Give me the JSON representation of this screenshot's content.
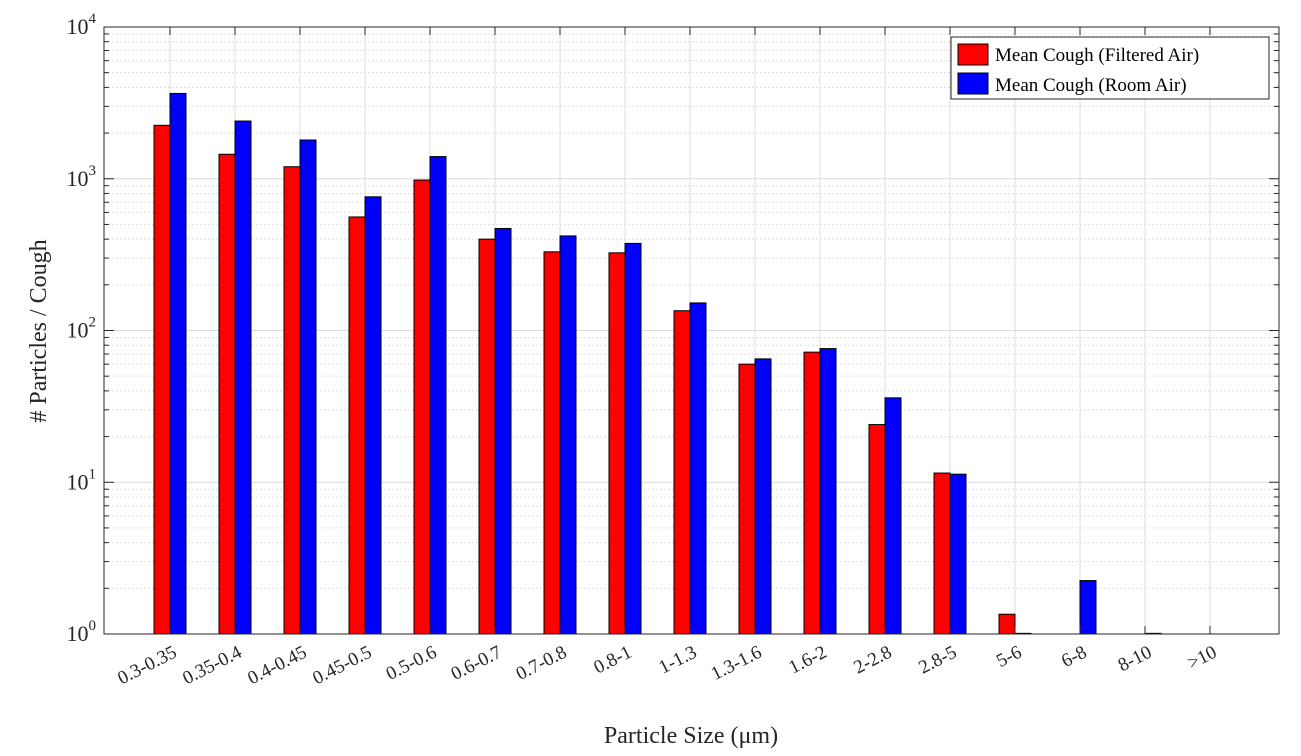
{
  "chart_data": {
    "type": "bar",
    "title": "",
    "xlabel": "Particle Size (μm)",
    "ylabel": "# Particles / Cough",
    "yscale": "log",
    "ylim": [
      1,
      10000
    ],
    "yticks": [
      1,
      10,
      100,
      1000,
      10000
    ],
    "ytick_labels": [
      {
        "base": "10",
        "exp": "0"
      },
      {
        "base": "10",
        "exp": "1"
      },
      {
        "base": "10",
        "exp": "2"
      },
      {
        "base": "10",
        "exp": "3"
      },
      {
        "base": "10",
        "exp": "4"
      }
    ],
    "grid": true,
    "legend_position": "top-right",
    "categories": [
      "0.3-0.35",
      "0.35-0.4",
      "0.4-0.45",
      "0.45-0.5",
      "0.5-0.6",
      "0.6-0.7",
      "0.7-0.8",
      "0.8-1",
      "1-1.3",
      "1.3-1.6",
      "1.6-2",
      "2-2.8",
      "2.8-5",
      "5-6",
      "6-8",
      "8-10",
      ">10"
    ],
    "series": [
      {
        "name": "Mean Cough (Filtered Air)",
        "color": "#ff0000",
        "values": [
          2250,
          1450,
          1200,
          560,
          980,
          400,
          330,
          325,
          135,
          60,
          72,
          24,
          11.5,
          1.35,
          0,
          0,
          0
        ]
      },
      {
        "name": "Mean Cough (Room Air)",
        "color": "#0000ff",
        "values": [
          3650,
          2400,
          1800,
          760,
          1400,
          470,
          420,
          375,
          152,
          65,
          76,
          36,
          11.3,
          1.01,
          2.25,
          1.01,
          0
        ]
      }
    ]
  }
}
